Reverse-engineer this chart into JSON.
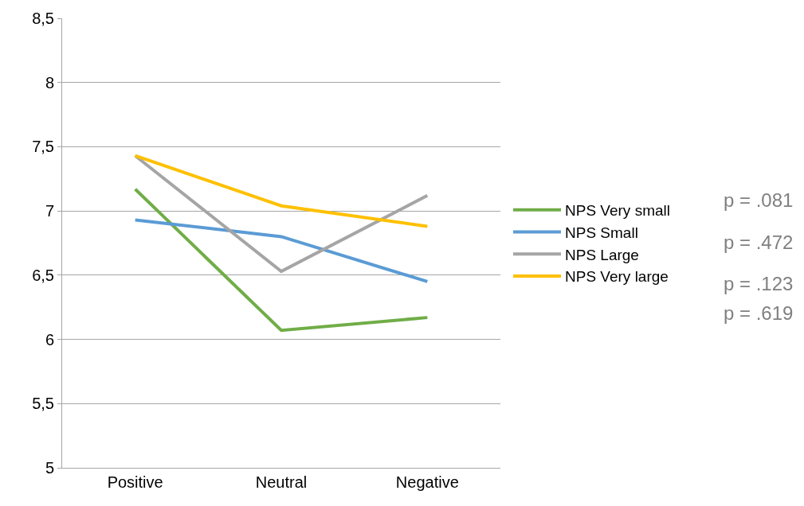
{
  "chart_data": {
    "type": "line",
    "categories": [
      "Positive",
      "Neutral",
      "Negative"
    ],
    "series": [
      {
        "name": "NPS Very small",
        "color": "#70ad47",
        "values": [
          7.17,
          6.07,
          6.17
        ]
      },
      {
        "name": "NPS Small",
        "color": "#5b9bd5",
        "values": [
          6.93,
          6.8,
          6.45
        ]
      },
      {
        "name": "NPS Large",
        "color": "#a5a5a5",
        "values": [
          7.43,
          6.53,
          7.12
        ]
      },
      {
        "name": "NPS Very large",
        "color": "#ffc000",
        "values": [
          7.43,
          7.04,
          6.88
        ]
      }
    ],
    "ylim": [
      5,
      8.5
    ],
    "yticks": [
      5,
      {
        "value": 5.5,
        "label": "5,5"
      },
      6,
      {
        "value": 6.5,
        "label": "6,5"
      },
      7,
      {
        "value": 7.5,
        "label": "7,5"
      },
      8,
      {
        "value": 8.5,
        "label": "8,5"
      }
    ],
    "grid": "y",
    "legend": "right",
    "marker": "none",
    "line_style": "solid",
    "annotations": [
      "p = .081",
      "p = .472",
      "p = .123",
      "p = .619"
    ]
  }
}
